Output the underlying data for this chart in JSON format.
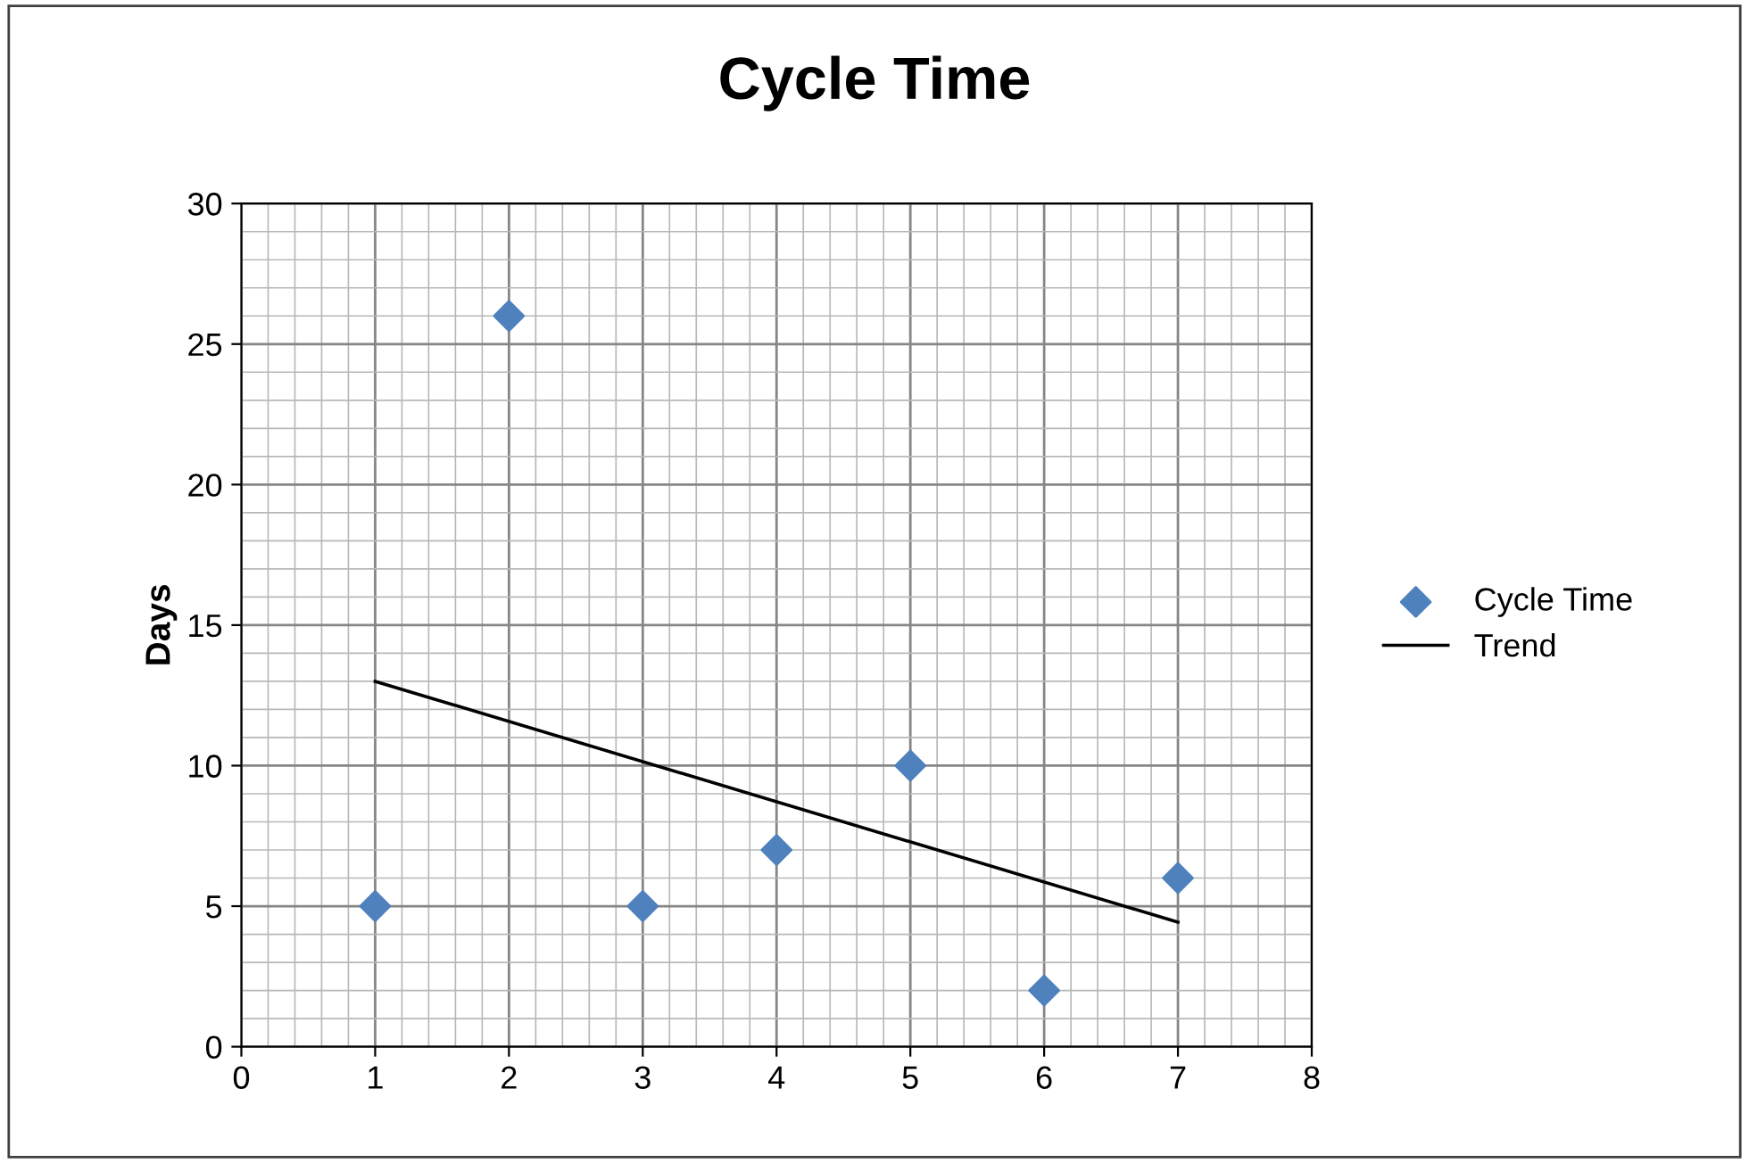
{
  "chart_data": {
    "type": "scatter",
    "title": "Cycle Time",
    "ylabel": "Days",
    "series": [
      {
        "name": "Cycle Time",
        "color": "#4f81bd",
        "marker": "diamond",
        "x": [
          1,
          2,
          3,
          4,
          5,
          6,
          7
        ],
        "values": [
          5,
          26,
          5,
          7,
          10,
          2,
          6
        ]
      },
      {
        "name": "Trend",
        "type": "line",
        "color": "#000000",
        "marker": "none",
        "line_style": "solid",
        "x": [
          1,
          7
        ],
        "values": [
          13.0,
          4.43
        ]
      }
    ],
    "xlim": [
      0,
      8
    ],
    "xticks": [
      0,
      1,
      2,
      3,
      4,
      5,
      6,
      7,
      8
    ],
    "ylim": [
      0,
      30
    ],
    "yticks": [
      0,
      5,
      10,
      15,
      20,
      25,
      30
    ],
    "grid": true,
    "legend": "right"
  }
}
